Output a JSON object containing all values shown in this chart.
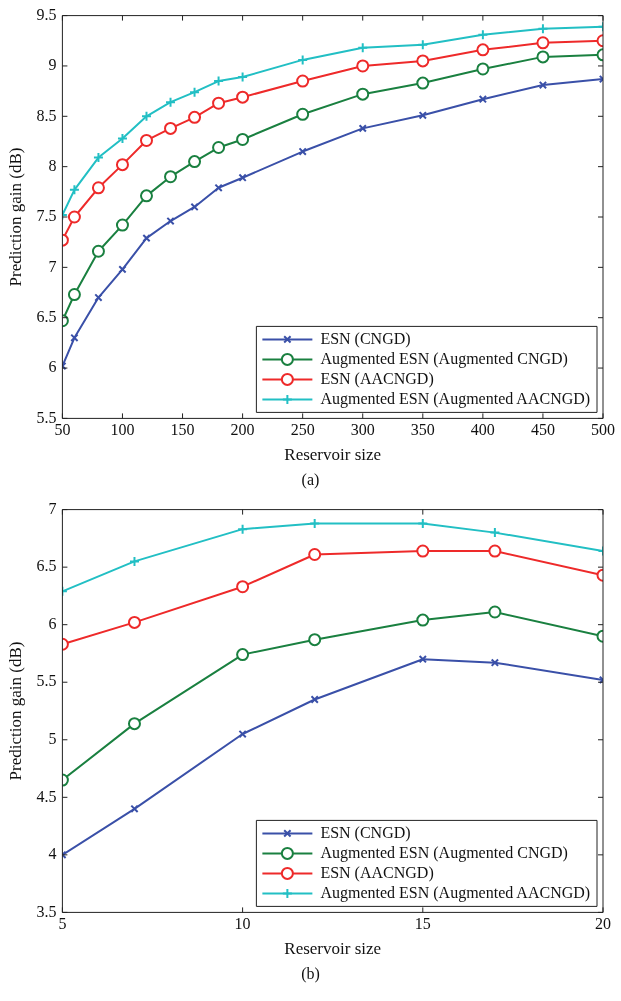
{
  "chart_data": [
    {
      "type": "line",
      "xlabel": "Reservoir size",
      "ylabel": "Prediction gain (dB)",
      "annotations": [
        "(a)"
      ],
      "x": [
        50,
        60,
        80,
        100,
        120,
        140,
        160,
        180,
        200,
        250,
        300,
        350,
        400,
        450,
        500
      ],
      "xlim": [
        50,
        500
      ],
      "xticks": [
        50,
        100,
        150,
        200,
        250,
        300,
        350,
        400,
        450,
        500
      ],
      "ylim": [
        5.5,
        9.5
      ],
      "yticks": [
        5.5,
        6,
        6.5,
        7,
        7.5,
        8,
        8.5,
        9,
        9.5
      ],
      "grid": false,
      "legend": "bottom right",
      "line_style": "solid",
      "series": [
        {
          "name": "ESN (CNGD)",
          "color": "#3a50a8",
          "marker": "cross",
          "values": [
            6.02,
            6.3,
            6.7,
            6.98,
            7.29,
            7.46,
            7.6,
            7.79,
            7.89,
            8.15,
            8.38,
            8.51,
            8.67,
            8.81,
            8.87
          ]
        },
        {
          "name": "Augmented ESN (Augmented CNGD)",
          "color": "#1a8040",
          "marker": "circle",
          "values": [
            6.47,
            6.73,
            7.16,
            7.42,
            7.71,
            7.9,
            8.05,
            8.19,
            8.27,
            8.52,
            8.72,
            8.83,
            8.97,
            9.09,
            9.11
          ]
        },
        {
          "name": "ESN (AACNGD)",
          "color": "#ee2a2a",
          "marker": "circle",
          "values": [
            7.27,
            7.5,
            7.79,
            8.02,
            8.26,
            8.38,
            8.49,
            8.63,
            8.69,
            8.85,
            9.0,
            9.05,
            9.16,
            9.23,
            9.25
          ]
        },
        {
          "name": "Augmented ESN (Augmented AACNGD)",
          "color": "#22bfc4",
          "marker": "plus",
          "values": [
            7.52,
            7.77,
            8.09,
            8.28,
            8.5,
            8.64,
            8.74,
            8.85,
            8.89,
            9.06,
            9.18,
            9.21,
            9.31,
            9.37,
            9.39
          ]
        }
      ]
    },
    {
      "type": "line",
      "xlabel": "Reservoir size",
      "ylabel": "Prediction gain (dB)",
      "annotations": [
        "(b)"
      ],
      "x": [
        5,
        7,
        10,
        12,
        15,
        17,
        20
      ],
      "xlim": [
        5,
        20
      ],
      "xticks": [
        5,
        10,
        15,
        20
      ],
      "ylim": [
        3.5,
        7
      ],
      "yticks": [
        3.5,
        4,
        4.5,
        5,
        5.5,
        6,
        6.5,
        7
      ],
      "grid": false,
      "legend": "bottom right",
      "line_style": "solid",
      "series": [
        {
          "name": "ESN (CNGD)",
          "color": "#3a50a8",
          "marker": "cross",
          "values": [
            4.0,
            4.4,
            5.05,
            5.35,
            5.7,
            5.67,
            5.52
          ]
        },
        {
          "name": "Augmented ESN (Augmented CNGD)",
          "color": "#1a8040",
          "marker": "circle",
          "values": [
            4.65,
            5.14,
            5.74,
            5.87,
            6.04,
            6.11,
            5.9
          ]
        },
        {
          "name": "ESN (AACNGD)",
          "color": "#ee2a2a",
          "marker": "circle",
          "values": [
            5.83,
            6.02,
            6.33,
            6.61,
            6.64,
            6.64,
            6.43
          ]
        },
        {
          "name": "Augmented ESN (Augmented AACNGD)",
          "color": "#22bfc4",
          "marker": "plus",
          "values": [
            6.29,
            6.55,
            6.83,
            6.88,
            6.88,
            6.8,
            6.64
          ]
        }
      ]
    }
  ]
}
